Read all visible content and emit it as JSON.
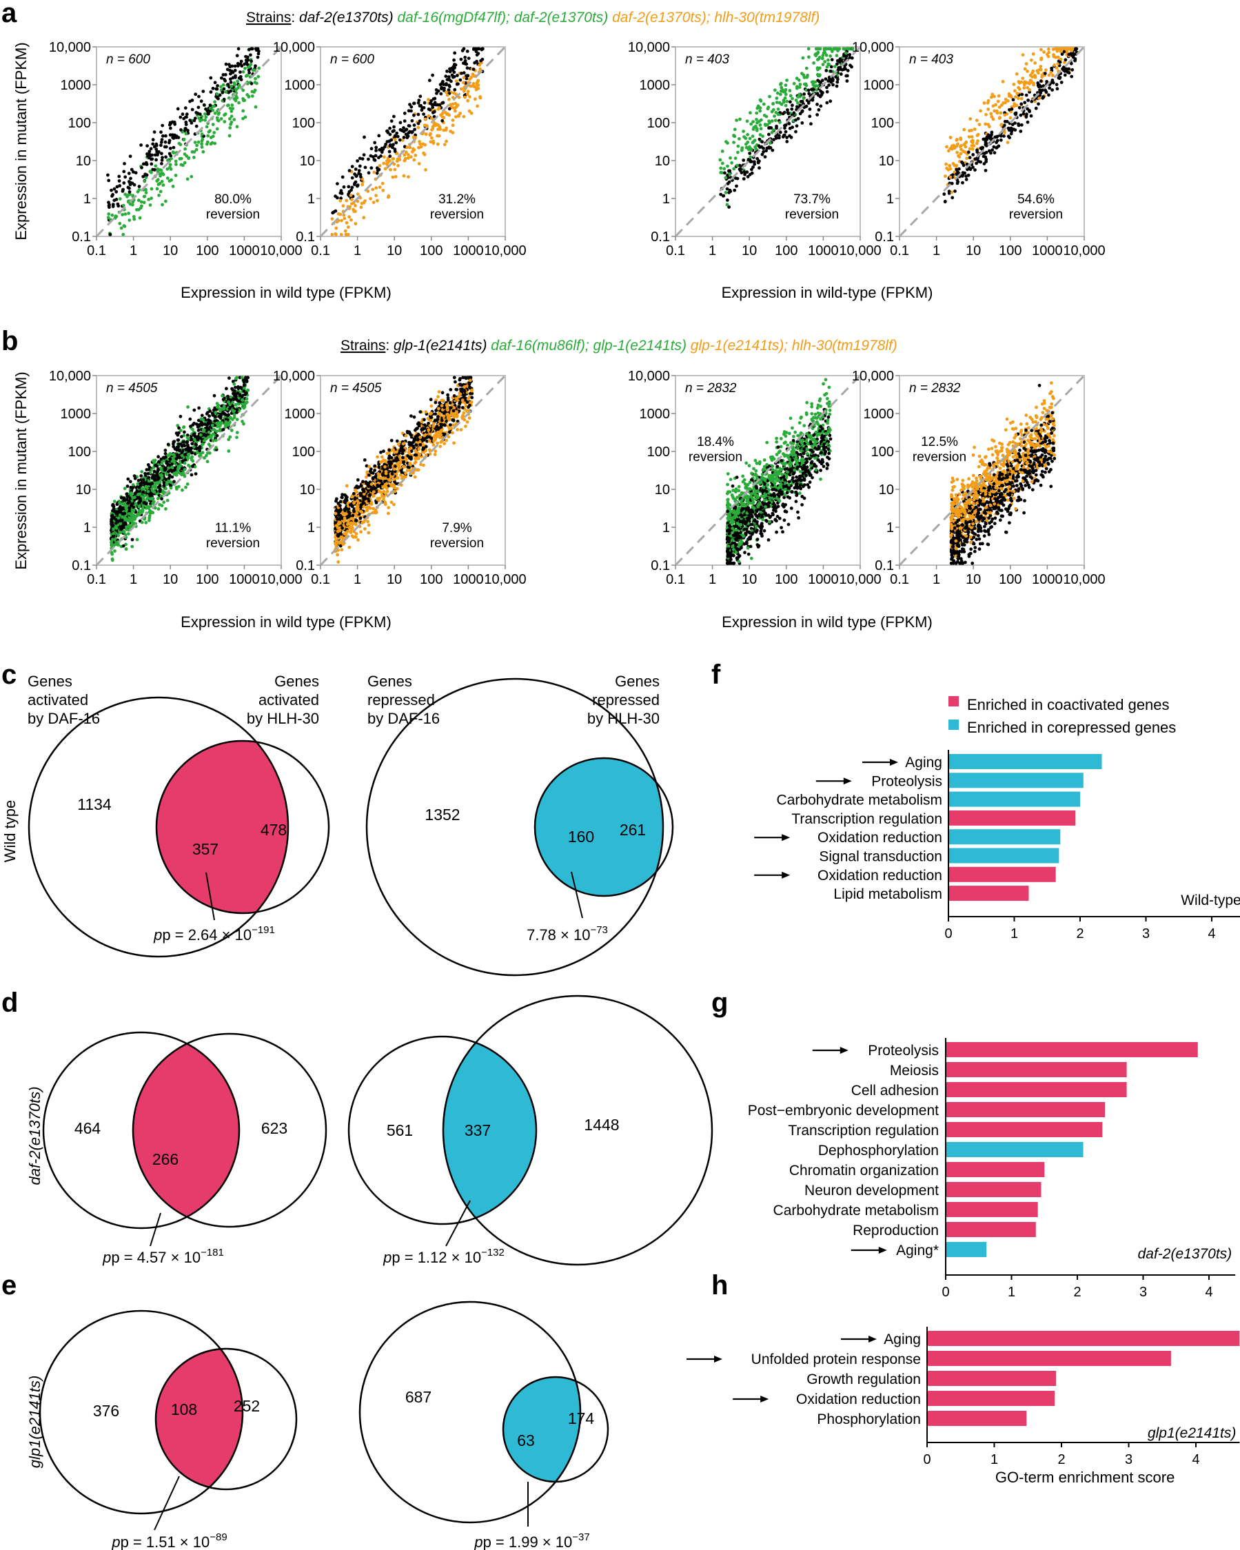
{
  "colors": {
    "black": "#000000",
    "green": "#2bab3a",
    "orange": "#f29c18",
    "magenta": "#e63c6b",
    "cyan": "#2ebad4",
    "diag": "#a8a8a8"
  },
  "panel_a": {
    "label": "a",
    "strains_label": "Strains",
    "strain_1": "daf-2(e1370ts)",
    "strain_2": "daf-16(mgDf47lf); daf-2(e1370ts)",
    "strain_3": "daf-2(e1370ts); hlh-30(tm1978lf)",
    "xlabel_left": "Expression in wild type (FPKM)",
    "xlabel_right": "Expression in wild-type (FPKM)",
    "ylabel": "Expression in mutant (FPKM)"
  },
  "panel_b": {
    "label": "b",
    "strains_label": "Strains",
    "strain_1": "glp-1(e2141ts)",
    "strain_2": "daf-16(mu86lf); glp-1(e2141ts)",
    "strain_3": "glp-1(e2141ts); hlh-30(tm1978lf)",
    "xlabel_left": "Expression in wild type (FPKM)",
    "xlabel_right": "Expression in wild type (FPKM)",
    "ylabel": "Expression in mutant (FPKM)"
  },
  "ticks": {
    "x": [
      "0.1",
      "1",
      "10",
      "100",
      "1000",
      "10,000"
    ],
    "y": [
      "10,000",
      "1000",
      "100",
      "10",
      "1",
      "0.1"
    ]
  },
  "scatter": [
    {
      "n": "n = 600",
      "rev_pct": "80.0%",
      "rev_word": "reversion",
      "color": "green",
      "mode": "a-up"
    },
    {
      "n": "n = 600",
      "rev_pct": "31.2%",
      "rev_word": "reversion",
      "color": "orange",
      "mode": "a-up"
    },
    {
      "n": "n = 403",
      "rev_pct": "73.7%",
      "rev_word": "reversion",
      "color": "green",
      "mode": "a-down"
    },
    {
      "n": "n = 403",
      "rev_pct": "54.6%",
      "rev_word": "reversion",
      "color": "orange",
      "mode": "a-down"
    },
    {
      "n": "n = 4505",
      "rev_pct": "11.1%",
      "rev_word": "reversion",
      "color": "green",
      "mode": "b-up"
    },
    {
      "n": "n = 4505",
      "rev_pct": "7.9%",
      "rev_word": "reversion",
      "color": "orange",
      "mode": "b-up"
    },
    {
      "n": "n = 2832",
      "rev_pct": "18.4%",
      "rev_word": "reversion",
      "color": "green",
      "mode": "b-down"
    },
    {
      "n": "n = 2832",
      "rev_pct": "12.5%",
      "rev_word": "reversion",
      "color": "orange",
      "mode": "b-down"
    }
  ],
  "panel_c": {
    "label": "c",
    "row_label": "Wild type",
    "h1a": "Genes",
    "h1b": "activated",
    "h1c": "by DAF-16",
    "h2a": "Genes",
    "h2b": "activated",
    "h2c": "by HLH-30",
    "h3a": "Genes",
    "h3b": "repressed",
    "h3c": "by DAF-16",
    "h4a": "Genes",
    "h4b": "repressed",
    "h4c": "by HLH-30",
    "act_left": "1134",
    "act_overlap": "357",
    "act_right": "478",
    "rep_left": "1352",
    "rep_overlap": "160",
    "rep_right": "261",
    "p_act": "p = 2.64 × 10",
    "p_act_exp": "−191",
    "p_rep": "7.78 × 10",
    "p_rep_exp": "−73"
  },
  "panel_d": {
    "label": "d",
    "row_label": "daf-2(e1370ts)",
    "act_left": "464",
    "act_overlap": "266",
    "act_right": "623",
    "rep_left": "561",
    "rep_overlap": "337",
    "rep_right": "1448",
    "p_act": "p = 4.57 × 10",
    "p_act_exp": "−181",
    "p_rep": "p = 1.12 × 10",
    "p_rep_exp": "−132"
  },
  "panel_e": {
    "label": "e",
    "row_label": "glp1(e2141ts)",
    "act_left": "376",
    "act_overlap": "108",
    "act_right": "252",
    "rep_left": "687",
    "rep_overlap": "63",
    "rep_right": "174",
    "p_act": "p = 1.51 × 10",
    "p_act_exp": "−89",
    "p_rep": "p = 1.99 × 10",
    "p_rep_exp": "−37"
  },
  "legend": {
    "coactivated": "Enriched in coactivated genes",
    "corepressed": "Enriched in corepressed genes"
  },
  "chart_data": [
    {
      "type": "bar",
      "orientation": "horizontal",
      "label": "f",
      "title": "Wild-type",
      "categories": [
        "Aging",
        "Proteolysis",
        "Carbohydrate metabolism",
        "Transcription regulation",
        "Oxidation reduction",
        "Signal transduction",
        "Oxidation reduction",
        "Lipid metabolism"
      ],
      "values": [
        2.33,
        2.05,
        2.0,
        1.93,
        1.7,
        1.68,
        1.63,
        1.22
      ],
      "groups": [
        "corepressed",
        "corepressed",
        "corepressed",
        "coactivated",
        "corepressed",
        "corepressed",
        "coactivated",
        "coactivated"
      ],
      "arrows": [
        true,
        true,
        false,
        false,
        true,
        false,
        true,
        false
      ],
      "xticks": [
        "0",
        "1",
        "2",
        "3",
        "4"
      ],
      "xlim": [
        0,
        4.5
      ]
    },
    {
      "type": "bar",
      "orientation": "horizontal",
      "label": "g",
      "title": "daf-2(e1370ts)",
      "categories": [
        "Proteolysis",
        "Meiosis",
        "Cell adhesion",
        "Post−embryonic development",
        "Transcription regulation",
        "Dephosphorylation",
        "Chromatin organization",
        "Neuron development",
        "Carbohydrate metabolism",
        "Reproduction",
        "Aging*"
      ],
      "values": [
        3.83,
        2.75,
        2.75,
        2.42,
        2.38,
        2.09,
        1.5,
        1.45,
        1.4,
        1.37,
        0.62
      ],
      "groups": [
        "coactivated",
        "coactivated",
        "coactivated",
        "coactivated",
        "coactivated",
        "corepressed",
        "coactivated",
        "coactivated",
        "coactivated",
        "coactivated",
        "corepressed"
      ],
      "arrows": [
        true,
        false,
        false,
        false,
        false,
        false,
        false,
        false,
        false,
        false,
        true
      ],
      "xticks": [
        "0",
        "1",
        "2",
        "3",
        "4"
      ],
      "xlim": [
        0,
        4.4
      ]
    },
    {
      "type": "bar",
      "orientation": "horizontal",
      "label": "h",
      "title": "glp1(e2141ts)",
      "categories": [
        "Aging",
        "Unfolded protein response",
        "Growth regulation",
        "Oxidation reduction",
        "Phosphorylation"
      ],
      "values": [
        4.65,
        3.63,
        1.92,
        1.9,
        1.48
      ],
      "groups": [
        "coactivated",
        "coactivated",
        "coactivated",
        "coactivated",
        "coactivated"
      ],
      "arrows": [
        true,
        true,
        false,
        true,
        false
      ],
      "xticks": [
        "0",
        "1",
        "2",
        "3",
        "4"
      ],
      "xlim": [
        0,
        4.65
      ],
      "xlabel": "GO-term enrichment score"
    }
  ]
}
